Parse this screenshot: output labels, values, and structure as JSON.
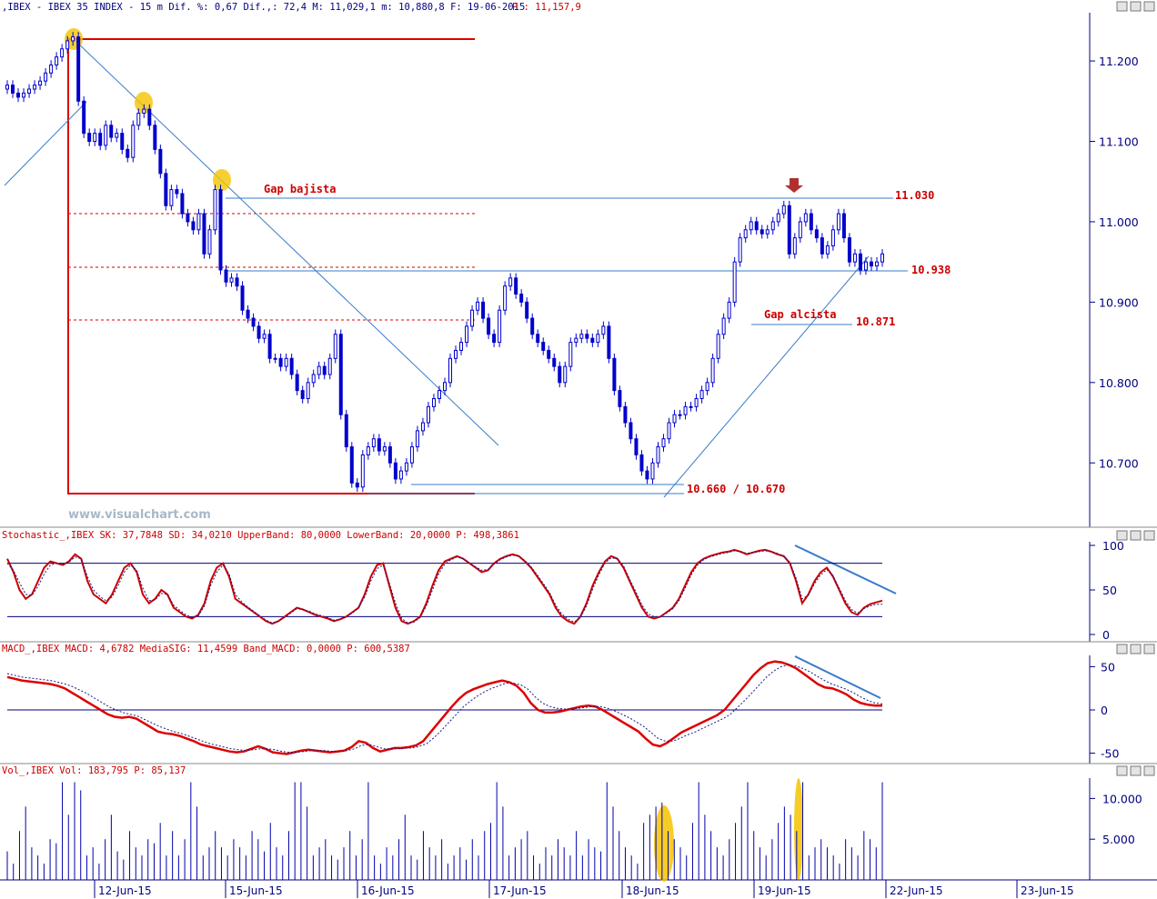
{
  "panels": {
    "price": {
      "title": ",IBEX - IBEX 35 INDEX -  15 m Dif. %: 0,67 Dif.,: 72,4 M: 11,029,1 m: 10,880,8 F: 19-06-2015",
      "last": "P : 11,157,9"
    },
    "stoch": {
      "title": "Stochastic_,IBEX SK: 37,7848 SD: 34,0210 UpperBand: 80,0000 LowerBand: 20,0000 P: 498,3861"
    },
    "macd": {
      "title": "MACD_,IBEX MACD: 4,6782 MediaSIG: 11,4599 Band_MACD: 0,0000 P: 600,5387"
    },
    "vol": {
      "title": "Vol_,IBEX Vol: 183,795 P: 85,137"
    }
  },
  "window_buttons": [
    "minimize",
    "restore",
    "close"
  ],
  "watermark": "www.visualchart.com",
  "annotations": {
    "gap_bajista": "Gap bajista",
    "gap_alcista": "Gap alcista",
    "level_11030": "11.030",
    "level_10938": "10.938",
    "level_10871": "10.871",
    "level_support": "10.660 / 10.670"
  },
  "colors": {
    "candle": "#0000cc",
    "stoch_k": "#cc0000",
    "annot": "#cc0000",
    "trend": "#3a7cc8",
    "axis": "#000080",
    "highlight": "#f4c400"
  },
  "chart_data": [
    {
      "type": "candlestick",
      "title": "IBEX 35 INDEX 15 m",
      "x_labels": [
        "12-Jun-15",
        "15-Jun-15",
        "16-Jun-15",
        "17-Jun-15",
        "18-Jun-15",
        "19-Jun-15",
        "22-Jun-15",
        "23-Jun-15"
      ],
      "y_ticks": [
        "11.200",
        "11.100",
        "11.000",
        "10.900",
        "10.800",
        "10.700"
      ],
      "ylim": [
        10620,
        11260
      ],
      "series": [
        {
          "close": [
            11170,
            11160,
            11155,
            11160,
            11165,
            11170,
            11175,
            11185,
            11195,
            11205,
            11215,
            11225,
            11230,
            11150,
            11110,
            11100,
            11110,
            11095,
            11120,
            11105,
            11110,
            11090,
            11080,
            11120,
            11135,
            11140,
            11120,
            11090,
            11060,
            11020,
            11040,
            11035,
            11010,
            11000,
            10990,
            11010,
            10960,
            10990,
            11040,
            10940,
            10925,
            10930,
            10920,
            10890,
            10880,
            10870,
            10855,
            10860,
            10830,
            10830,
            10820,
            10830,
            10810,
            10790,
            10780,
            10800,
            10810,
            10820,
            10810,
            10830,
            10860,
            10760,
            10720,
            10675,
            10670,
            10710,
            10720,
            10730,
            10715,
            10720,
            10700,
            10680,
            10690,
            10700,
            10720,
            10740,
            10750,
            10770,
            10780,
            10790,
            10800,
            10830,
            10840,
            10850,
            10870,
            10890,
            10900,
            10880,
            10860,
            10850,
            10890,
            10920,
            10930,
            10910,
            10900,
            10880,
            10860,
            10850,
            10840,
            10830,
            10820,
            10800,
            10820,
            10850,
            10855,
            10860,
            10855,
            10850,
            10860,
            10870,
            10830,
            10790,
            10770,
            10750,
            10730,
            10710,
            10690,
            10680,
            10700,
            10720,
            10730,
            10750,
            10760,
            10760,
            10770,
            10770,
            10780,
            10790,
            10800,
            10830,
            10860,
            10880,
            10900,
            10950,
            10980,
            10990,
            11000,
            10990,
            10985,
            10990,
            11000,
            11010,
            11020,
            10960,
            10980,
            11000,
            11010,
            10990,
            10980,
            10960,
            10970,
            10990,
            11010,
            10980,
            10950,
            10960,
            10940,
            10950,
            10945,
            10950,
            10960
          ]
        }
      ]
    },
    {
      "type": "line",
      "title": "Stochastic",
      "y_ticks": [
        "100",
        "50",
        "0"
      ],
      "ylim": [
        0,
        100
      ],
      "bands": [
        80,
        20
      ],
      "series": [
        {
          "name": "SK",
          "values": [
            85,
            70,
            50,
            40,
            45,
            60,
            75,
            82,
            80,
            78,
            82,
            90,
            85,
            60,
            45,
            40,
            35,
            45,
            60,
            75,
            80,
            70,
            45,
            35,
            40,
            50,
            45,
            30,
            25,
            20,
            18,
            22,
            35,
            60,
            75,
            80,
            65,
            40,
            35,
            30,
            25,
            20,
            15,
            12,
            15,
            20,
            25,
            30,
            28,
            25,
            22,
            20,
            18,
            15,
            17,
            20,
            25,
            30,
            45,
            65,
            78,
            80,
            55,
            30,
            15,
            12,
            15,
            20,
            35,
            55,
            72,
            82,
            85,
            88,
            85,
            80,
            75,
            70,
            72,
            80,
            85,
            88,
            90,
            88,
            82,
            75,
            65,
            55,
            45,
            30,
            20,
            15,
            12,
            20,
            35,
            55,
            70,
            82,
            88,
            85,
            75,
            60,
            45,
            30,
            20,
            18,
            20,
            25,
            30,
            40,
            55,
            70,
            80,
            85,
            88,
            90,
            92,
            93,
            95,
            93,
            90,
            92,
            94,
            95,
            93,
            90,
            88,
            80,
            60,
            35,
            45,
            60,
            70,
            75,
            65,
            50,
            35,
            25,
            22,
            30,
            34,
            36,
            38
          ]
        },
        {
          "name": "SD",
          "values": [
            80,
            72,
            58,
            45,
            44,
            54,
            68,
            78,
            80,
            79,
            81,
            87,
            85,
            65,
            50,
            43,
            38,
            42,
            55,
            70,
            78,
            72,
            52,
            38,
            39,
            46,
            45,
            33,
            27,
            22,
            19,
            21,
            32,
            55,
            70,
            78,
            68,
            45,
            37,
            31,
            26,
            21,
            16,
            13,
            15,
            19,
            24,
            29,
            28,
            26,
            23,
            21,
            19,
            16,
            17,
            20,
            24,
            30,
            42,
            60,
            74,
            78,
            58,
            35,
            18,
            13,
            14,
            19,
            32,
            50,
            68,
            79,
            84,
            87,
            85,
            80,
            76,
            72,
            73,
            79,
            84,
            87,
            89,
            88,
            83,
            76,
            67,
            57,
            47,
            33,
            23,
            17,
            14,
            19,
            32,
            51,
            67,
            80,
            86,
            85,
            77,
            62,
            48,
            33,
            23,
            20,
            20,
            24,
            29,
            38,
            52,
            67,
            78,
            84,
            87,
            89,
            91,
            92,
            94,
            93,
            91,
            92,
            93,
            94,
            93,
            91,
            88,
            81,
            63,
            40,
            44,
            57,
            67,
            73,
            66,
            52,
            38,
            28,
            24,
            29,
            32,
            34,
            34
          ]
        }
      ]
    },
    {
      "type": "line",
      "title": "MACD",
      "y_ticks": [
        "50",
        "0",
        "-50"
      ],
      "ylim": [
        -62,
        62
      ],
      "series": [
        {
          "name": "MACD",
          "values": [
            38,
            36,
            34,
            33,
            32,
            31,
            30,
            28,
            25,
            20,
            15,
            10,
            5,
            0,
            -5,
            -8,
            -9,
            -8,
            -10,
            -15,
            -20,
            -25,
            -27,
            -28,
            -30,
            -33,
            -36,
            -40,
            -42,
            -44,
            -46,
            -48,
            -49,
            -48,
            -45,
            -42,
            -45,
            -49,
            -50,
            -51,
            -49,
            -47,
            -46,
            -47,
            -48,
            -49,
            -48,
            -47,
            -43,
            -36,
            -38,
            -44,
            -48,
            -46,
            -44,
            -44,
            -43,
            -41,
            -36,
            -26,
            -16,
            -6,
            4,
            13,
            20,
            24,
            27,
            30,
            32,
            34,
            32,
            28,
            20,
            8,
            0,
            -3,
            -3,
            -2,
            0,
            2,
            4,
            5,
            4,
            0,
            -5,
            -10,
            -15,
            -20,
            -25,
            -33,
            -40,
            -42,
            -38,
            -32,
            -26,
            -22,
            -18,
            -14,
            -10,
            -6,
            0,
            10,
            20,
            30,
            40,
            48,
            54,
            56,
            55,
            52,
            48,
            42,
            36,
            30,
            26,
            25,
            22,
            18,
            12,
            8,
            6,
            5,
            5
          ]
        },
        {
          "name": "MediaSIG",
          "values": [
            42,
            40,
            38,
            37,
            36,
            35,
            34,
            32,
            30,
            27,
            23,
            19,
            14,
            9,
            4,
            0,
            -3,
            -5,
            -7,
            -11,
            -15,
            -19,
            -22,
            -25,
            -27,
            -30,
            -33,
            -36,
            -39,
            -41,
            -43,
            -45,
            -46,
            -47,
            -46,
            -45,
            -45,
            -46,
            -48,
            -49,
            -49,
            -48,
            -47,
            -47,
            -47,
            -48,
            -48,
            -47,
            -45,
            -41,
            -40,
            -42,
            -45,
            -45,
            -45,
            -44,
            -44,
            -42,
            -39,
            -32,
            -24,
            -15,
            -6,
            3,
            10,
            16,
            21,
            25,
            28,
            31,
            31,
            29,
            24,
            15,
            8,
            4,
            2,
            1,
            1,
            2,
            3,
            4,
            4,
            2,
            -1,
            -5,
            -9,
            -14,
            -19,
            -26,
            -33,
            -36,
            -36,
            -33,
            -29,
            -26,
            -22,
            -18,
            -14,
            -10,
            -5,
            3,
            11,
            20,
            29,
            38,
            45,
            50,
            52,
            51,
            48,
            44,
            39,
            34,
            30,
            27,
            24,
            20,
            15,
            11,
            8,
            7
          ]
        }
      ]
    },
    {
      "type": "bar",
      "title": "Vol",
      "y_ticks": [
        "10.000",
        "5.000"
      ],
      "ylim": [
        0,
        12500
      ],
      "values": [
        3500,
        2000,
        6000,
        9000,
        4000,
        3000,
        2000,
        5000,
        4500,
        12000,
        8000,
        12000,
        11000,
        3000,
        4000,
        2000,
        5000,
        8000,
        3500,
        2500,
        6000,
        4000,
        3000,
        5000,
        4500,
        7000,
        3000,
        6000,
        3000,
        5000,
        12000,
        9000,
        3000,
        4000,
        6000,
        4000,
        3000,
        5000,
        4000,
        3000,
        6000,
        5000,
        3500,
        7000,
        4000,
        3000,
        6000,
        12000,
        12000,
        9000,
        3000,
        4000,
        5000,
        3000,
        2500,
        4000,
        6000,
        3000,
        5000,
        12000,
        3000,
        2000,
        4000,
        3000,
        5000,
        8000,
        3000,
        2500,
        6000,
        4000,
        3000,
        5000,
        2000,
        3000,
        4000,
        2500,
        5000,
        3000,
        6000,
        7000,
        12000,
        9000,
        3000,
        4000,
        5000,
        6000,
        3000,
        2000,
        4000,
        3000,
        5000,
        4000,
        3000,
        6000,
        3000,
        5000,
        4000,
        3500,
        12000,
        9000,
        6000,
        4000,
        3000,
        2000,
        7000,
        8000,
        9000,
        9500,
        6000,
        5000,
        4000,
        3000,
        7000,
        12000,
        8000,
        6000,
        4000,
        3000,
        5000,
        7000,
        9000,
        12000,
        6000,
        4000,
        3000,
        5000,
        7000,
        9000,
        8000,
        6000,
        12000,
        3000,
        4000,
        5000,
        4000,
        3000,
        2000,
        5000,
        4000,
        3000,
        6000,
        5000,
        4000,
        12000
      ]
    }
  ]
}
